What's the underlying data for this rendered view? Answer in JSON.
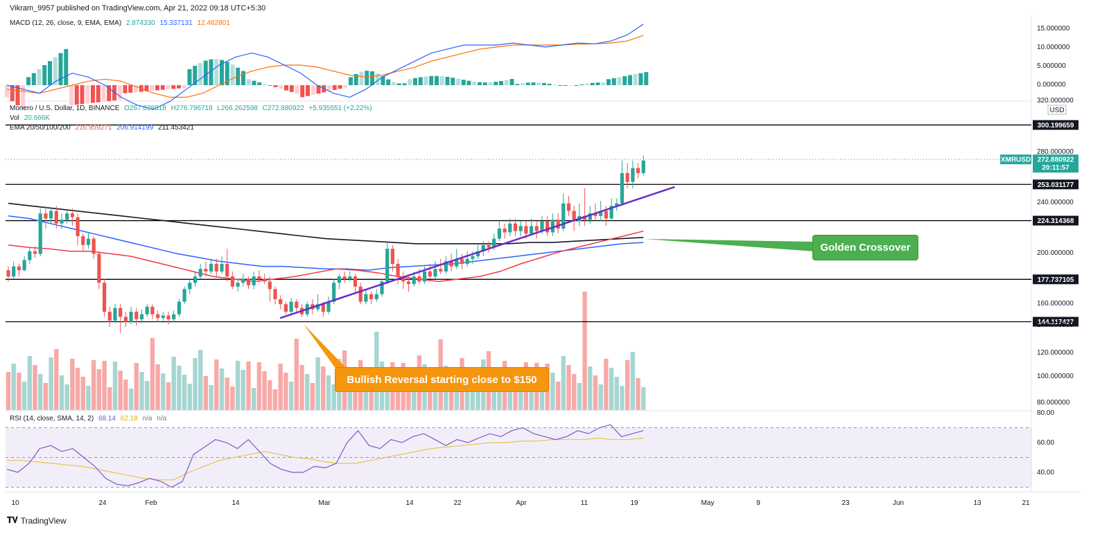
{
  "publisher_line": "Vikram_9957 published on TradingView.com, Apr 21, 2022 09:18 UTC+5:30",
  "macd": {
    "label": "MACD (12, 26, close, 9, EMA, EMA)",
    "v1": "2.874330",
    "v2": "15.337131",
    "v3": "12.462801",
    "axis_labels": [
      "15.000000",
      "10.000000",
      "5.000000",
      "0.000000"
    ]
  },
  "price_header": {
    "symbol": "Monero / U.S. Dollar, 1D, BINANCE",
    "o": "O267.028818",
    "h": "H276.796718",
    "l": "L266.262598",
    "c": "C272.880922",
    "chg": "+5.935551 (+2.22%)",
    "vol_label": "Vol",
    "vol_value": "20.666K",
    "ema_label": "EMA 20/50/100/200",
    "ema1": "216.959271",
    "ema2": "206.914199",
    "ema3": "211.453421"
  },
  "price_axis": {
    "currency": "USD",
    "top_partial": "320.000000",
    "labels": [
      "280.000000",
      "240.000000",
      "200.000000",
      "160.000000",
      "120.000000",
      "100.000000",
      "80.000000"
    ],
    "bottom_partial": "140.000000"
  },
  "levels": [
    {
      "label": "300.199659"
    },
    {
      "label": "253.031177"
    },
    {
      "label": "224.314368"
    },
    {
      "label": "177.737105"
    },
    {
      "label": "144.117427"
    }
  ],
  "current_price": {
    "symbol": "XMRUSD",
    "price": "272.880922",
    "countdown": "20:11:57"
  },
  "rsi": {
    "label": "RSI (14, close, SMA, 14, 2)",
    "v1": "68.14",
    "v2": "62.18",
    "v3": "n/a",
    "v4": "n/a",
    "axis_labels": [
      "80.00",
      "60.00",
      "40.00"
    ]
  },
  "x_axis": [
    "10",
    "24",
    "Feb",
    "14",
    "Mar",
    "14",
    "22",
    "Apr",
    "11",
    "19",
    "May",
    "9",
    "23",
    "Jun",
    "13",
    "21"
  ],
  "annotations": {
    "bullish": "Bullish Reversal starting close to $150",
    "golden": "Golden Crossover"
  },
  "brand": "TradingView",
  "colors": {
    "bull": "#26a69a",
    "bear": "#ef5350",
    "macd": "#2962ff",
    "signal": "#ff6d00",
    "ema20": "#f23645",
    "ema100": "#2962ff",
    "ema200": "#131722",
    "trend": "#6a2cc9",
    "rsi": "#7e57c2",
    "rsi_ma": "#e8c44a",
    "bull_callout": "#f5960e",
    "golden_callout": "#4caf50"
  },
  "chart_data": {
    "type": "candlestick",
    "title": "Monero / U.S. Dollar, 1D, BINANCE",
    "ylim": [
      140,
      320
    ],
    "horizontal_levels": [
      300.199659,
      253.031177,
      224.314368,
      177.737105,
      144.117427
    ],
    "candles": [
      [
        185,
        180,
        188,
        176
      ],
      [
        180,
        188,
        192,
        178
      ],
      [
        188,
        185,
        190,
        180
      ],
      [
        185,
        193,
        196,
        184
      ],
      [
        193,
        200,
        203,
        190
      ],
      [
        200,
        198,
        204,
        195
      ],
      [
        198,
        230,
        234,
        196
      ],
      [
        230,
        226,
        236,
        218
      ],
      [
        226,
        232,
        235,
        222
      ],
      [
        232,
        222,
        236,
        218
      ],
      [
        222,
        225,
        230,
        218
      ],
      [
        225,
        230,
        232,
        222
      ],
      [
        230,
        227,
        234,
        220
      ],
      [
        227,
        212,
        230,
        205
      ],
      [
        212,
        205,
        214,
        200
      ],
      [
        205,
        210,
        215,
        202
      ],
      [
        210,
        198,
        212,
        194
      ],
      [
        198,
        175,
        200,
        170
      ],
      [
        175,
        152,
        178,
        148
      ],
      [
        152,
        145,
        156,
        140
      ],
      [
        145,
        155,
        158,
        143
      ],
      [
        155,
        148,
        158,
        135
      ],
      [
        148,
        144,
        152,
        140
      ],
      [
        144,
        152,
        156,
        142
      ],
      [
        152,
        146,
        155,
        141
      ],
      [
        146,
        150,
        154,
        143
      ],
      [
        150,
        156,
        158,
        148
      ],
      [
        156,
        150,
        158,
        146
      ],
      [
        150,
        147,
        153,
        144
      ],
      [
        147,
        149,
        152,
        143
      ],
      [
        149,
        146,
        152,
        142
      ],
      [
        146,
        150,
        153,
        144
      ],
      [
        150,
        160,
        162,
        148
      ],
      [
        160,
        170,
        172,
        158
      ],
      [
        170,
        175,
        178,
        166
      ],
      [
        175,
        180,
        184,
        172
      ],
      [
        180,
        186,
        190,
        178
      ],
      [
        186,
        184,
        192,
        180
      ],
      [
        184,
        190,
        194,
        182
      ],
      [
        190,
        184,
        194,
        180
      ],
      [
        184,
        190,
        196,
        182
      ],
      [
        190,
        180,
        202,
        176
      ],
      [
        180,
        172,
        184,
        170
      ],
      [
        172,
        175,
        178,
        168
      ],
      [
        175,
        178,
        182,
        172
      ],
      [
        178,
        173,
        180,
        170
      ],
      [
        173,
        180,
        184,
        170
      ],
      [
        180,
        178,
        185,
        175
      ],
      [
        178,
        176,
        182,
        174
      ],
      [
        176,
        170,
        180,
        160
      ],
      [
        170,
        162,
        172,
        158
      ],
      [
        162,
        158,
        165,
        154
      ],
      [
        158,
        152,
        160,
        150
      ],
      [
        152,
        160,
        163,
        150
      ],
      [
        160,
        155,
        162,
        151
      ],
      [
        155,
        150,
        158,
        148
      ],
      [
        150,
        158,
        160,
        148
      ],
      [
        158,
        154,
        162,
        150
      ],
      [
        154,
        158,
        166,
        152
      ],
      [
        158,
        152,
        160,
        148
      ],
      [
        152,
        160,
        164,
        150
      ],
      [
        160,
        175,
        178,
        158
      ],
      [
        175,
        180,
        182,
        170
      ],
      [
        180,
        178,
        184,
        175
      ],
      [
        178,
        180,
        184,
        176
      ],
      [
        180,
        172,
        182,
        166
      ],
      [
        172,
        160,
        175,
        158
      ],
      [
        160,
        166,
        170,
        158
      ],
      [
        166,
        162,
        168,
        158
      ],
      [
        162,
        166,
        170,
        160
      ],
      [
        166,
        176,
        178,
        164
      ],
      [
        176,
        202,
        208,
        174
      ],
      [
        202,
        190,
        205,
        184
      ],
      [
        190,
        180,
        194,
        174
      ],
      [
        180,
        176,
        184,
        170
      ],
      [
        176,
        174,
        180,
        168
      ],
      [
        174,
        180,
        184,
        172
      ],
      [
        180,
        176,
        186,
        174
      ],
      [
        176,
        184,
        188,
        174
      ],
      [
        184,
        180,
        190,
        178
      ],
      [
        180,
        186,
        192,
        178
      ],
      [
        186,
        184,
        194,
        182
      ],
      [
        184,
        192,
        196,
        182
      ],
      [
        192,
        188,
        198,
        184
      ],
      [
        188,
        194,
        202,
        186
      ],
      [
        194,
        190,
        198,
        186
      ],
      [
        190,
        194,
        200,
        188
      ],
      [
        194,
        196,
        200,
        190
      ],
      [
        196,
        200,
        206,
        194
      ],
      [
        200,
        205,
        208,
        196
      ],
      [
        205,
        203,
        208,
        199
      ],
      [
        203,
        210,
        214,
        201
      ],
      [
        210,
        218,
        225,
        208
      ],
      [
        218,
        215,
        222,
        210
      ],
      [
        215,
        222,
        226,
        212
      ],
      [
        222,
        216,
        226,
        212
      ],
      [
        216,
        220,
        224,
        212
      ],
      [
        220,
        214,
        224,
        210
      ],
      [
        214,
        220,
        226,
        212
      ],
      [
        220,
        216,
        224,
        210
      ],
      [
        216,
        224,
        228,
        214
      ],
      [
        224,
        215,
        228,
        212
      ],
      [
        215,
        225,
        230,
        212
      ],
      [
        225,
        218,
        230,
        214
      ],
      [
        218,
        238,
        246,
        216
      ],
      [
        238,
        232,
        244,
        228
      ],
      [
        232,
        224,
        236,
        216
      ],
      [
        224,
        228,
        238,
        220
      ],
      [
        228,
        225,
        250,
        220
      ],
      [
        225,
        230,
        236,
        222
      ],
      [
        230,
        228,
        238,
        224
      ],
      [
        228,
        232,
        240,
        224
      ],
      [
        232,
        226,
        236,
        220
      ],
      [
        226,
        236,
        242,
        224
      ],
      [
        236,
        238,
        242,
        232
      ],
      [
        238,
        262,
        272,
        236
      ],
      [
        262,
        255,
        270,
        250
      ],
      [
        255,
        266,
        272,
        250
      ],
      [
        266,
        262,
        270,
        258
      ],
      [
        262,
        272,
        276,
        260
      ]
    ],
    "ema20": [
      205,
      203,
      202,
      200,
      200,
      198,
      196,
      192,
      188,
      184,
      180,
      178,
      176,
      178,
      180,
      183,
      186,
      185,
      183,
      180,
      178,
      176,
      178,
      180,
      184,
      190,
      195,
      200,
      204,
      208,
      212,
      216
    ],
    "ema100": [
      228,
      226,
      222,
      218,
      214,
      210,
      206,
      202,
      198,
      195,
      192,
      190,
      188,
      188,
      187,
      186,
      186,
      185,
      187,
      188,
      189,
      190,
      192,
      194,
      196,
      198,
      200,
      202,
      204,
      206,
      207
    ],
    "ema200": [
      238,
      236,
      234,
      232,
      230,
      228,
      226,
      224,
      222,
      220,
      218,
      216,
      214,
      212,
      210,
      209,
      208,
      207,
      206,
      206,
      206,
      206,
      206,
      207,
      207,
      208,
      209,
      210,
      211
    ],
    "trendline": {
      "from": [
        "Feb 25",
        148
      ],
      "to": [
        "Apr 23",
        248
      ]
    }
  }
}
